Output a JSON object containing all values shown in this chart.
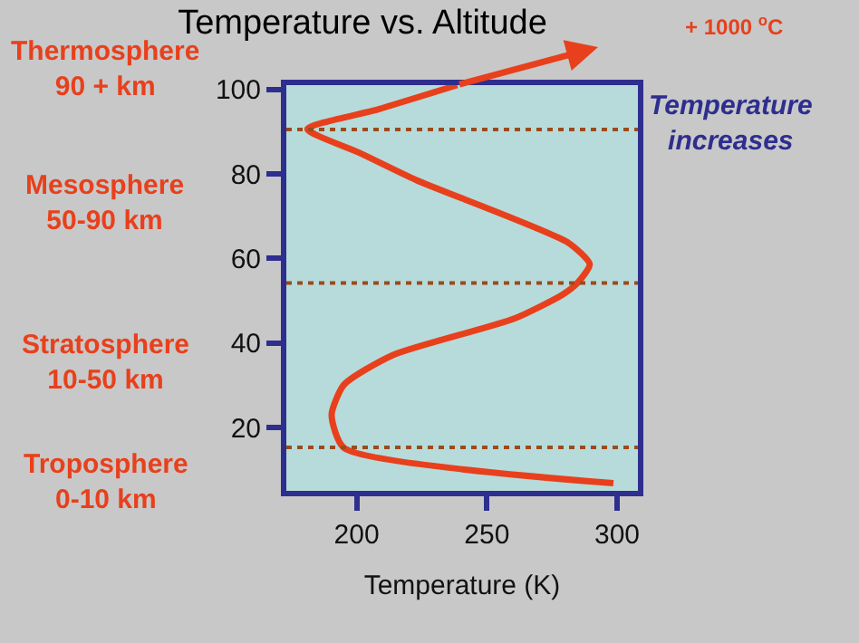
{
  "chart_data": {
    "type": "line",
    "title": "Temperature vs. Altitude",
    "xlabel": "Temperature (K)",
    "x": [
      298.6,
      195.1,
      190.4,
      195.1,
      213.8,
      260.3,
      279,
      284.8,
      289.5,
      281.3,
      223,
      201,
      181.1,
      208.4,
      238.6
    ],
    "series": [
      {
        "color": "#e8401c",
        "values": [
          6.8,
          15.2,
          23,
          30.1,
          37.1,
          45.7,
          51.4,
          54.2,
          58.6,
          63.7,
          78.5,
          85,
          90.6,
          95.3,
          101
        ]
      }
    ],
    "xlim": [
      173,
      308
    ],
    "xticks": [
      200,
      250,
      300
    ],
    "ylim": [
      5,
      101
    ],
    "yticks": [
      20,
      40,
      60,
      80,
      100
    ],
    "ref_lines": [
      {
        "axis": "y",
        "value": 90.5,
        "color": "#9b4a1c",
        "line_style": "dotted"
      },
      {
        "axis": "y",
        "value": 54.2,
        "color": "#9b4a1c",
        "line_style": "dotted"
      },
      {
        "axis": "y",
        "value": 15.3,
        "color": "#9b4a1c",
        "line_style": "dotted"
      }
    ],
    "annotations": [
      "Thermosphere\n90 + km",
      "Mesosphere\n50-90 km",
      "Stratosphere\n10-50 km",
      "Troposphere\n0-10 km",
      "Temperature\nincreases",
      "+ 1000 $^{o}$C"
    ],
    "grid": false,
    "marker": "none",
    "line_style": "solid"
  }
}
